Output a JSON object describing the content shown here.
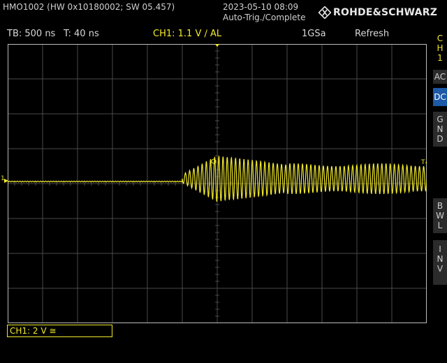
{
  "header": {
    "device": "HMO1002 (HW 0x10180002; SW 05.457)",
    "date": "2023-05-10 08:09",
    "trigger_state": "Auto-Trig./Complete",
    "brand": "ROHDE&SCHWARZ"
  },
  "status": {
    "timebase": "TB: 500 ns",
    "trigger_position": "T: 40 ns",
    "channel_trigger": "CH1: 1.1 V ∕ AL",
    "sample_rate": "1GSa",
    "acquisition_mode": "Refresh"
  },
  "side_menu": {
    "channel": [
      "C",
      "H",
      "1"
    ],
    "ac": "AC",
    "dc": "DC",
    "gnd": [
      "G",
      "N",
      "D"
    ],
    "bwl": [
      "B",
      "W",
      "L"
    ],
    "inv": [
      "I",
      "N",
      "V"
    ]
  },
  "markers": {
    "channel_marker": "1",
    "trigger_marker": "T"
  },
  "channel_readout": "CH1: 2 V ≅",
  "colors": {
    "trace": "#f2ea2a",
    "grid": "#4a4a4a",
    "active_button": "#1d5aa8"
  }
}
